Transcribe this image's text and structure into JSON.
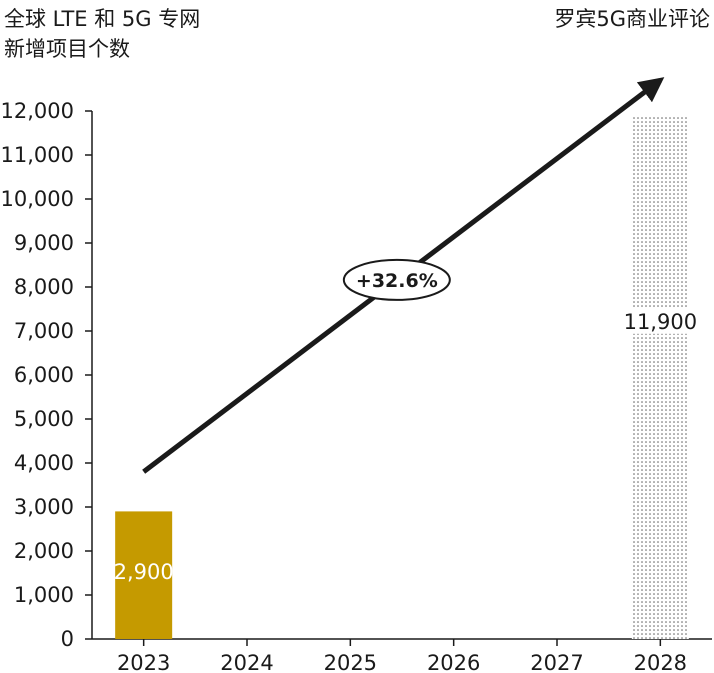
{
  "title_lines": [
    "全球 LTE 和 5G 专网",
    "新增项目个数"
  ],
  "source": "罗宾5G商业评论",
  "colors": {
    "actual_bar": "#c59a00",
    "forecast_dots": "#555555",
    "axis": "#1a1a1a",
    "arrow": "#1a1a1a"
  },
  "chart_data": {
    "type": "bar",
    "categories": [
      "2023",
      "2024",
      "2025",
      "2026",
      "2027",
      "2028"
    ],
    "values": [
      2900,
      null,
      null,
      null,
      null,
      11900
    ],
    "value_labels": [
      "2,900",
      "",
      "",
      "",
      "",
      "11,900"
    ],
    "bar_styles": [
      "solid",
      "none",
      "none",
      "none",
      "none",
      "dotted"
    ],
    "ylim": [
      0,
      12000
    ],
    "yticks": [
      0,
      1000,
      2000,
      3000,
      4000,
      5000,
      6000,
      7000,
      8000,
      9000,
      10000,
      11000,
      12000
    ],
    "ytick_labels": [
      "0",
      "1,000",
      "2,000",
      "3,000",
      "4,000",
      "5,000",
      "6,000",
      "7,000",
      "8,000",
      "9,000",
      "10,000",
      "11,000",
      "12,000"
    ],
    "grid": false,
    "annotation": {
      "text": "+32.6%",
      "arrow_from": [
        "2023",
        3800
      ],
      "arrow_to": [
        "2028",
        12700
      ]
    }
  }
}
